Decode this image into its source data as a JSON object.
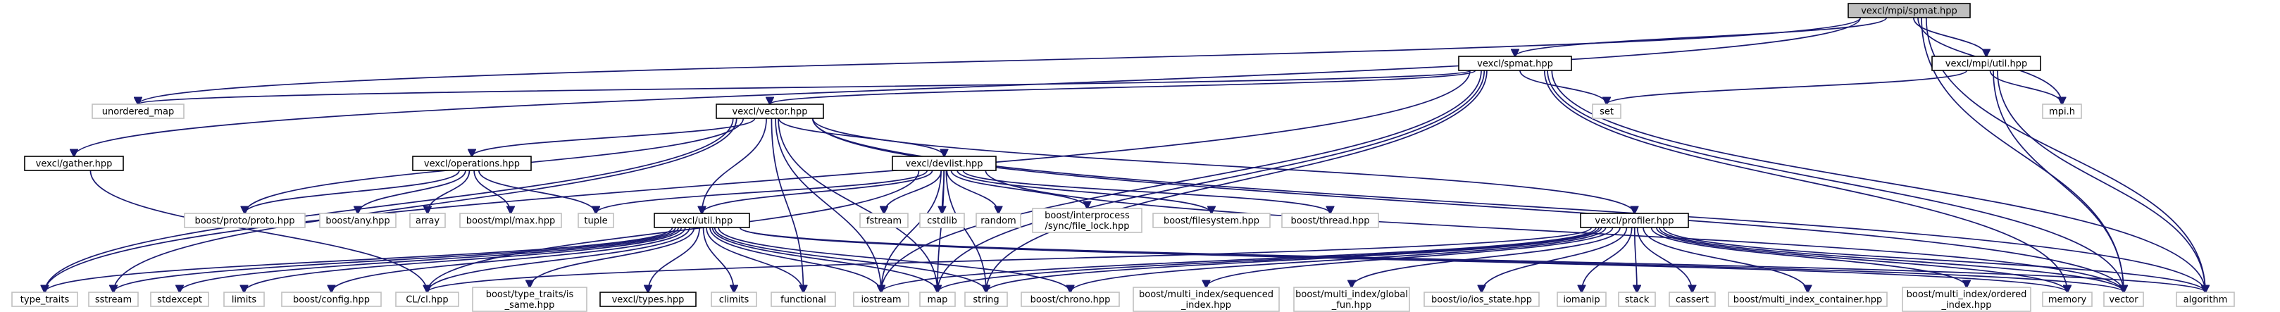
{
  "graph": {
    "colors": {
      "edge": "#191970",
      "root_fill": "#bfbfbf",
      "local_fill": "#ffffff",
      "local_border": "#000000",
      "external_border": "#bfbfbf",
      "text": "#000000"
    },
    "nodes": [
      {
        "id": "root",
        "label": "vexcl/mpi/spmat.hpp",
        "kind": "root"
      },
      {
        "id": "spmat",
        "label": "vexcl/spmat.hpp",
        "kind": "local"
      },
      {
        "id": "mpi_util",
        "label": "vexcl/mpi/util.hpp",
        "kind": "local"
      },
      {
        "id": "unordered_map",
        "label": "unordered_map",
        "kind": "external"
      },
      {
        "id": "vector_hpp",
        "label": "vexcl/vector.hpp",
        "kind": "local"
      },
      {
        "id": "set",
        "label": "set",
        "kind": "external"
      },
      {
        "id": "mpi_h",
        "label": "mpi.h",
        "kind": "external"
      },
      {
        "id": "gather",
        "label": "vexcl/gather.hpp",
        "kind": "local"
      },
      {
        "id": "operations",
        "label": "vexcl/operations.hpp",
        "kind": "local"
      },
      {
        "id": "devlist",
        "label": "vexcl/devlist.hpp",
        "kind": "local"
      },
      {
        "id": "proto",
        "label": "boost/proto/proto.hpp",
        "kind": "external"
      },
      {
        "id": "any",
        "label": "boost/any.hpp",
        "kind": "external"
      },
      {
        "id": "array",
        "label": "array",
        "kind": "external"
      },
      {
        "id": "mpl_max",
        "label": "boost/mpl/max.hpp",
        "kind": "external"
      },
      {
        "id": "tuple",
        "label": "tuple",
        "kind": "external"
      },
      {
        "id": "fstream",
        "label": "fstream",
        "kind": "external"
      },
      {
        "id": "cstdlib",
        "label": "cstdlib",
        "kind": "external"
      },
      {
        "id": "random",
        "label": "random",
        "kind": "external"
      },
      {
        "id": "file_lock",
        "label": "boost/interprocess\n/sync/file_lock.hpp",
        "kind": "external"
      },
      {
        "id": "filesystem",
        "label": "boost/filesystem.hpp",
        "kind": "external"
      },
      {
        "id": "thread",
        "label": "boost/thread.hpp",
        "kind": "external"
      },
      {
        "id": "util",
        "label": "vexcl/util.hpp",
        "kind": "local"
      },
      {
        "id": "profiler",
        "label": "vexcl/profiler.hpp",
        "kind": "local"
      },
      {
        "id": "type_traits",
        "label": "type_traits",
        "kind": "external"
      },
      {
        "id": "sstream",
        "label": "sstream",
        "kind": "external"
      },
      {
        "id": "stdexcept",
        "label": "stdexcept",
        "kind": "external"
      },
      {
        "id": "limits",
        "label": "limits",
        "kind": "external"
      },
      {
        "id": "config",
        "label": "boost/config.hpp",
        "kind": "external"
      },
      {
        "id": "cl_hpp",
        "label": "CL/cl.hpp",
        "kind": "external"
      },
      {
        "id": "is_same",
        "label": "boost/type_traits/is\n_same.hpp",
        "kind": "external"
      },
      {
        "id": "types",
        "label": "vexcl/types.hpp",
        "kind": "local"
      },
      {
        "id": "climits",
        "label": "climits",
        "kind": "external"
      },
      {
        "id": "functional",
        "label": "functional",
        "kind": "external"
      },
      {
        "id": "iostream",
        "label": "iostream",
        "kind": "external"
      },
      {
        "id": "map",
        "label": "map",
        "kind": "external"
      },
      {
        "id": "string",
        "label": "string",
        "kind": "external"
      },
      {
        "id": "chrono",
        "label": "boost/chrono.hpp",
        "kind": "external"
      },
      {
        "id": "sequenced",
        "label": "boost/multi_index/sequenced\n_index.hpp",
        "kind": "external"
      },
      {
        "id": "global_fun",
        "label": "boost/multi_index/global\n_fun.hpp",
        "kind": "external"
      },
      {
        "id": "ios_state",
        "label": "boost/io/ios_state.hpp",
        "kind": "external"
      },
      {
        "id": "iomanip",
        "label": "iomanip",
        "kind": "external"
      },
      {
        "id": "stack",
        "label": "stack",
        "kind": "external"
      },
      {
        "id": "cassert",
        "label": "cassert",
        "kind": "external"
      },
      {
        "id": "mi_container",
        "label": "boost/multi_index_container.hpp",
        "kind": "external"
      },
      {
        "id": "ordered",
        "label": "boost/multi_index/ordered\n_index.hpp",
        "kind": "external"
      },
      {
        "id": "memory",
        "label": "memory",
        "kind": "external"
      },
      {
        "id": "vector",
        "label": "vector",
        "kind": "external"
      },
      {
        "id": "algorithm",
        "label": "algorithm",
        "kind": "external"
      }
    ],
    "edges": [
      [
        "root",
        "spmat"
      ],
      [
        "root",
        "mpi_util"
      ],
      [
        "root",
        "unordered_map"
      ],
      [
        "root",
        "gather"
      ],
      [
        "root",
        "mpi_h"
      ],
      [
        "root",
        "vector"
      ],
      [
        "root",
        "algorithm"
      ],
      [
        "spmat",
        "unordered_map"
      ],
      [
        "spmat",
        "vector_hpp"
      ],
      [
        "spmat",
        "set"
      ],
      [
        "spmat",
        "type_traits"
      ],
      [
        "spmat",
        "map"
      ],
      [
        "spmat",
        "string"
      ],
      [
        "spmat",
        "iostream"
      ],
      [
        "spmat",
        "memory"
      ],
      [
        "spmat",
        "vector"
      ],
      [
        "spmat",
        "algorithm"
      ],
      [
        "mpi_util",
        "set"
      ],
      [
        "mpi_util",
        "mpi_h"
      ],
      [
        "mpi_util",
        "vector"
      ],
      [
        "mpi_util",
        "algorithm"
      ],
      [
        "vector_hpp",
        "operations"
      ],
      [
        "vector_hpp",
        "devlist"
      ],
      [
        "vector_hpp",
        "util"
      ],
      [
        "vector_hpp",
        "profiler"
      ],
      [
        "vector_hpp",
        "proto"
      ],
      [
        "vector_hpp",
        "type_traits"
      ],
      [
        "vector_hpp",
        "sstream"
      ],
      [
        "vector_hpp",
        "functional"
      ],
      [
        "vector_hpp",
        "iostream"
      ],
      [
        "vector_hpp",
        "map"
      ],
      [
        "vector_hpp",
        "vector"
      ],
      [
        "vector_hpp",
        "algorithm"
      ],
      [
        "gather",
        "cl_hpp"
      ],
      [
        "operations",
        "proto"
      ],
      [
        "operations",
        "any"
      ],
      [
        "operations",
        "array"
      ],
      [
        "operations",
        "mpl_max"
      ],
      [
        "operations",
        "tuple"
      ],
      [
        "devlist",
        "tuple"
      ],
      [
        "devlist",
        "fstream"
      ],
      [
        "devlist",
        "cstdlib"
      ],
      [
        "devlist",
        "random"
      ],
      [
        "devlist",
        "file_lock"
      ],
      [
        "devlist",
        "filesystem"
      ],
      [
        "devlist",
        "thread"
      ],
      [
        "devlist",
        "util"
      ],
      [
        "devlist",
        "iostream"
      ],
      [
        "devlist",
        "map"
      ],
      [
        "devlist",
        "string"
      ],
      [
        "devlist",
        "vector"
      ],
      [
        "devlist",
        "cl_hpp"
      ],
      [
        "util",
        "type_traits"
      ],
      [
        "util",
        "sstream"
      ],
      [
        "util",
        "stdexcept"
      ],
      [
        "util",
        "limits"
      ],
      [
        "util",
        "config"
      ],
      [
        "util",
        "cl_hpp"
      ],
      [
        "util",
        "is_same"
      ],
      [
        "util",
        "types"
      ],
      [
        "util",
        "climits"
      ],
      [
        "util",
        "functional"
      ],
      [
        "util",
        "iostream"
      ],
      [
        "util",
        "map"
      ],
      [
        "util",
        "string"
      ],
      [
        "util",
        "chrono"
      ],
      [
        "util",
        "vector"
      ],
      [
        "util",
        "memory"
      ],
      [
        "util",
        "algorithm"
      ],
      [
        "profiler",
        "map"
      ],
      [
        "profiler",
        "string"
      ],
      [
        "profiler",
        "iostream"
      ],
      [
        "profiler",
        "chrono"
      ],
      [
        "profiler",
        "sequenced"
      ],
      [
        "profiler",
        "global_fun"
      ],
      [
        "profiler",
        "ios_state"
      ],
      [
        "profiler",
        "iomanip"
      ],
      [
        "profiler",
        "stack"
      ],
      [
        "profiler",
        "cassert"
      ],
      [
        "profiler",
        "mi_container"
      ],
      [
        "profiler",
        "ordered"
      ],
      [
        "profiler",
        "memory"
      ],
      [
        "profiler",
        "vector"
      ],
      [
        "profiler",
        "algorithm"
      ],
      [
        "profiler",
        "cl_hpp"
      ]
    ]
  }
}
